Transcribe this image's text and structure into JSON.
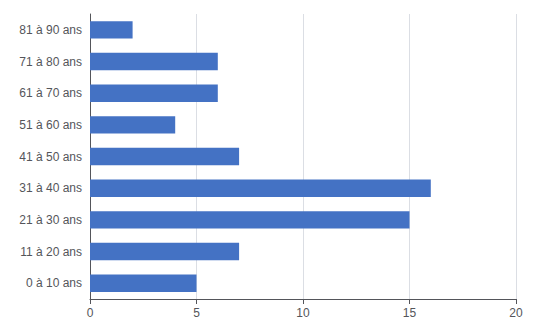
{
  "chart_data": {
    "type": "bar",
    "orientation": "horizontal",
    "categories": [
      "0 à 10 ans",
      "11 à 20 ans",
      "21 à 30 ans",
      "31 à 40 ans",
      "41 à 50 ans",
      "51 à 60 ans",
      "61 à 70 ans",
      "71 à 80 ans",
      "81 à 90 ans"
    ],
    "values": [
      5,
      7,
      15,
      16,
      7,
      4,
      6,
      6,
      2
    ],
    "color": "#4472C4",
    "xlim": [
      0,
      20
    ],
    "xticks": [
      0,
      5,
      10,
      15,
      20
    ],
    "grid": true
  }
}
